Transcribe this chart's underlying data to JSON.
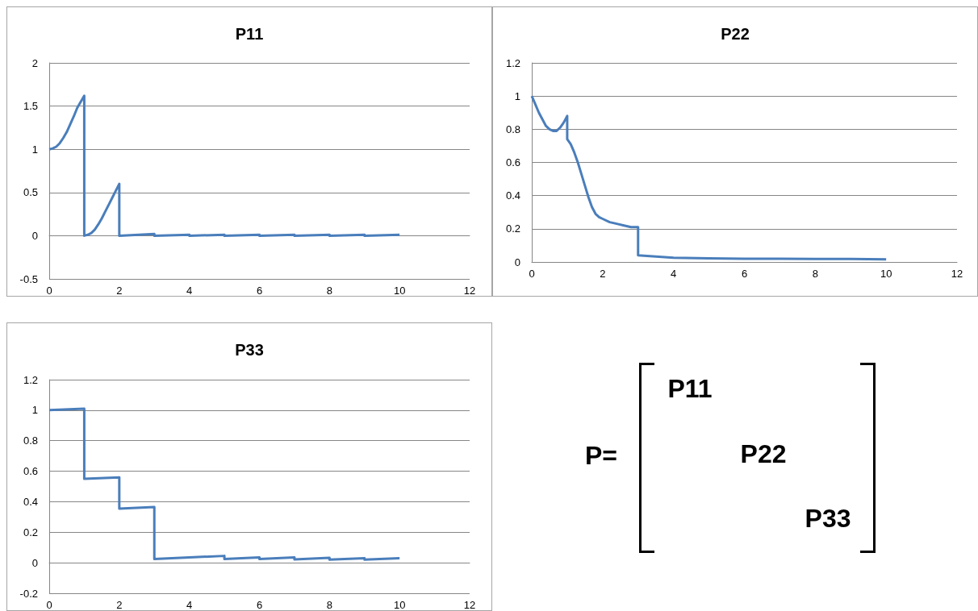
{
  "chart_data": [
    {
      "type": "line",
      "title": "P11",
      "color": "#4a7ebb",
      "grid": "y",
      "xlim": [
        0,
        12
      ],
      "xticks": [
        0,
        2,
        4,
        6,
        8,
        10,
        12
      ],
      "ylim": [
        -0.5,
        2
      ],
      "yticks": [
        -0.5,
        0,
        0.5,
        1,
        1.5,
        2
      ],
      "x": [
        0,
        0.1,
        0.2,
        0.3,
        0.4,
        0.5,
        0.6,
        0.7,
        0.8,
        0.9,
        1,
        1,
        1.1,
        1.2,
        1.3,
        1.4,
        1.5,
        1.6,
        1.7,
        1.8,
        1.9,
        2,
        2,
        3,
        3,
        4,
        4,
        5,
        5,
        6,
        6,
        7,
        7,
        8,
        8,
        9,
        9,
        10
      ],
      "values": [
        1,
        1.01,
        1.03,
        1.07,
        1.13,
        1.2,
        1.29,
        1.38,
        1.48,
        1.55,
        1.62,
        0,
        0.01,
        0.03,
        0.07,
        0.13,
        0.2,
        0.28,
        0.36,
        0.44,
        0.52,
        0.6,
        0,
        0.02,
        0,
        0.01,
        0,
        0.01,
        0,
        0.01,
        0,
        0.01,
        0,
        0.01,
        0,
        0.01,
        0,
        0.01
      ]
    },
    {
      "type": "line",
      "title": "P22",
      "color": "#4a7ebb",
      "grid": "y",
      "xlim": [
        0,
        12
      ],
      "xticks": [
        0,
        2,
        4,
        6,
        8,
        10,
        12
      ],
      "ylim": [
        0,
        1.2
      ],
      "yticks": [
        0,
        0.2,
        0.4,
        0.6,
        0.8,
        1,
        1.2
      ],
      "x": [
        0,
        0.1,
        0.2,
        0.3,
        0.4,
        0.5,
        0.6,
        0.7,
        0.8,
        0.9,
        1,
        1,
        1.1,
        1.2,
        1.3,
        1.4,
        1.5,
        1.6,
        1.7,
        1.8,
        1.9,
        2,
        2.2,
        2.4,
        2.6,
        2.8,
        3,
        3,
        4,
        5,
        6,
        7,
        8,
        9,
        10
      ],
      "values": [
        1,
        0.95,
        0.9,
        0.86,
        0.82,
        0.8,
        0.79,
        0.79,
        0.81,
        0.84,
        0.88,
        0.74,
        0.71,
        0.66,
        0.6,
        0.53,
        0.46,
        0.39,
        0.33,
        0.29,
        0.27,
        0.26,
        0.24,
        0.23,
        0.22,
        0.21,
        0.21,
        0.04,
        0.025,
        0.022,
        0.02,
        0.019,
        0.018,
        0.018,
        0.016
      ]
    },
    {
      "type": "line",
      "title": "P33",
      "color": "#4a7ebb",
      "grid": "y",
      "xlim": [
        0,
        12
      ],
      "xticks": [
        0,
        2,
        4,
        6,
        8,
        10,
        12
      ],
      "ylim": [
        -0.2,
        1.2
      ],
      "yticks": [
        -0.2,
        0,
        0.2,
        0.4,
        0.6,
        0.8,
        1,
        1.2
      ],
      "x": [
        0,
        1,
        1,
        2,
        2,
        3,
        3,
        4,
        5,
        5,
        6,
        6,
        7,
        7,
        8,
        8,
        9,
        9,
        10
      ],
      "values": [
        1,
        1.01,
        0.55,
        0.56,
        0.355,
        0.365,
        0.025,
        0.035,
        0.045,
        0.025,
        0.035,
        0.025,
        0.035,
        0.022,
        0.032,
        0.02,
        0.03,
        0.02,
        0.03
      ]
    },
    {
      "type": "other",
      "annotations": [
        "P=",
        "P11",
        "P22",
        "P33"
      ]
    }
  ]
}
